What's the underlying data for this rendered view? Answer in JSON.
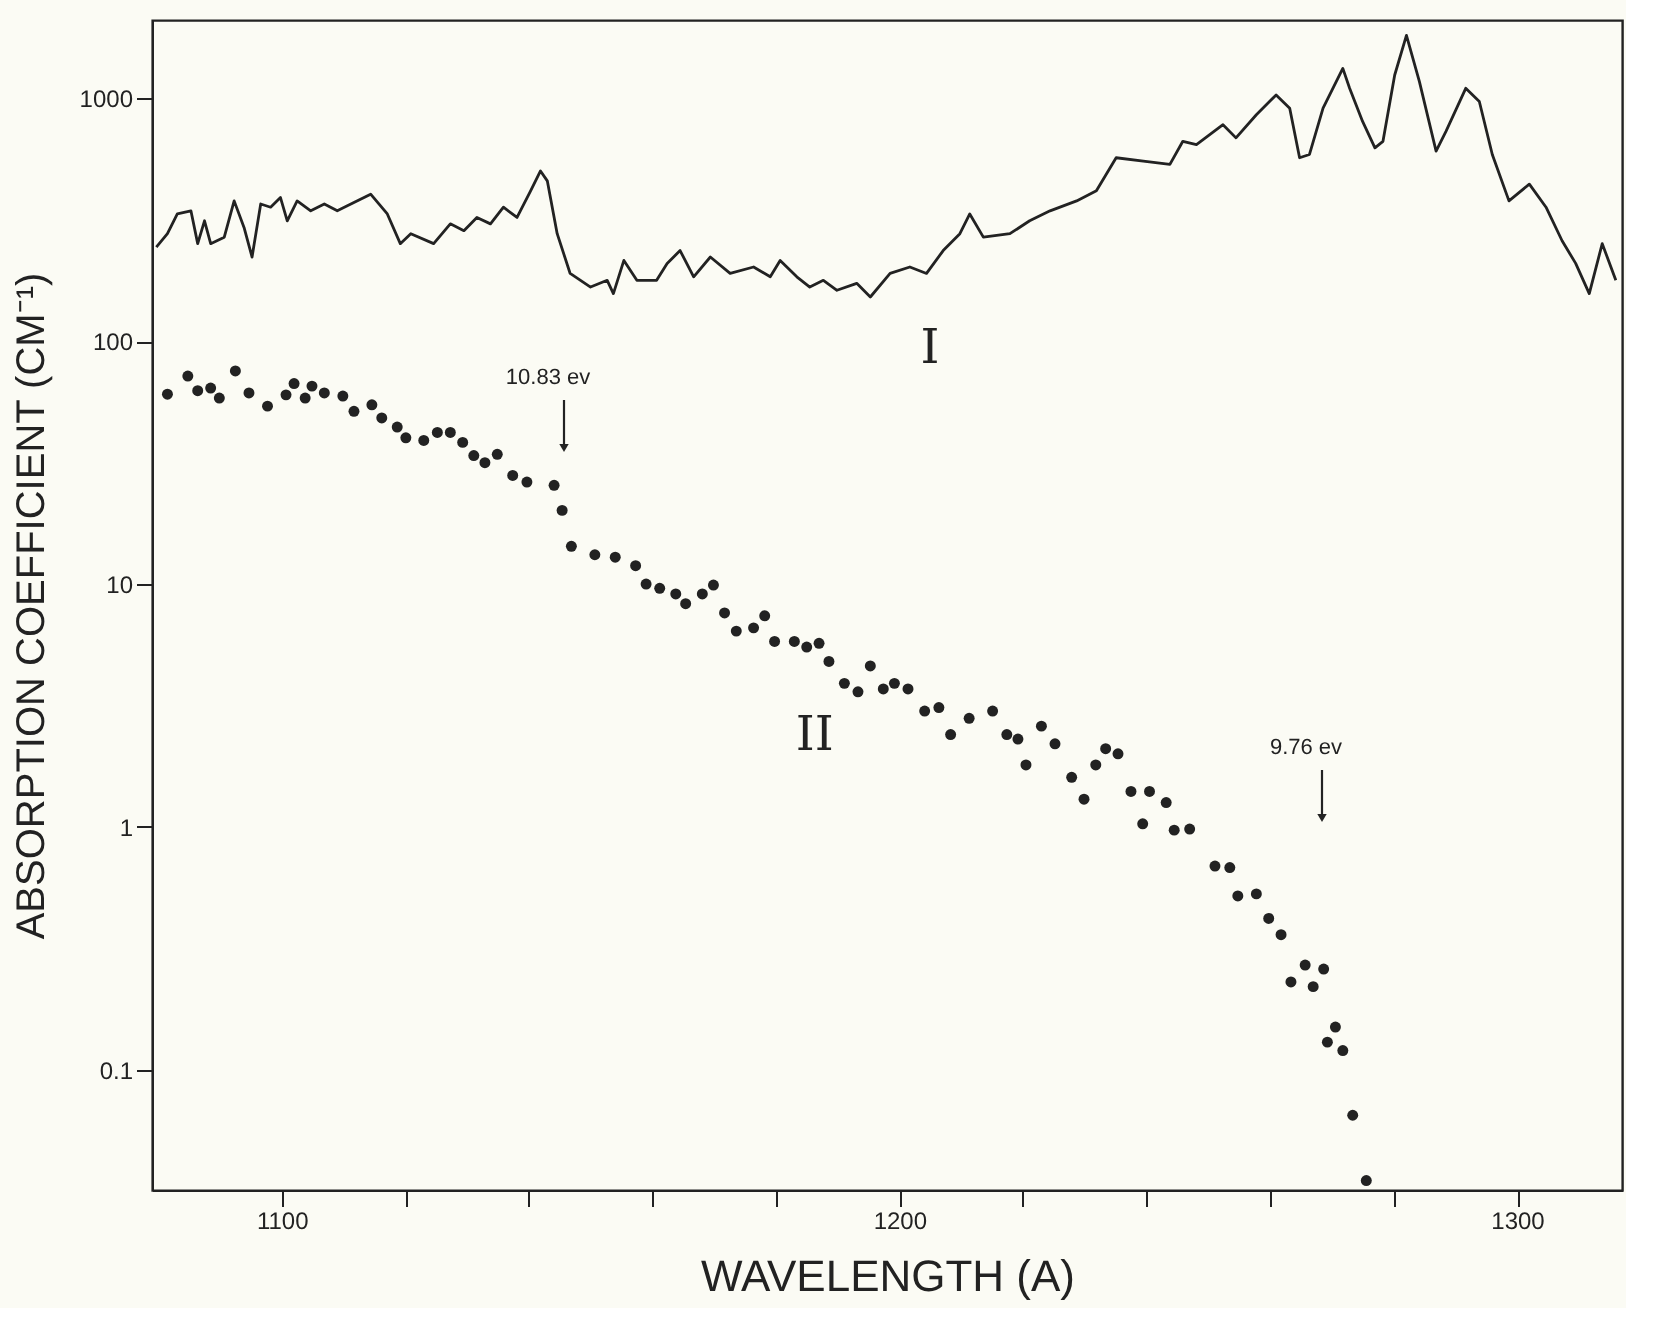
{
  "chart_data": {
    "type": "line",
    "xlabel": "WAVELENGTH (A)",
    "ylabel": "ABSORPTION COEFFICIENT (CM⁻¹)",
    "log": "y",
    "xlim": [
      1079,
      1317
    ],
    "ylim": [
      0.032,
      2100
    ],
    "xticks": [
      1100,
      {
        "value": 1120,
        "label": null
      },
      {
        "value": 1140,
        "label": null
      },
      {
        "value": 1160,
        "label": null
      },
      {
        "value": 1180,
        "label": null
      },
      1200,
      {
        "value": 1220,
        "label": null
      },
      {
        "value": 1240,
        "label": null
      },
      {
        "value": 1260,
        "label": null
      },
      {
        "value": 1280,
        "label": null
      },
      1300
    ],
    "yticks": [
      0.1,
      1,
      10,
      100,
      1000
    ],
    "grid": false,
    "legend": false,
    "series": [
      {
        "name": "I",
        "marker": "none",
        "line_style": "solid",
        "color": "#222222",
        "x": [
          1079.7,
          1081.5,
          1083.1,
          1085.3,
          1086.4,
          1087.5,
          1088.5,
          1090.7,
          1092.3,
          1093.9,
          1095.2,
          1096.6,
          1098.2,
          1099.8,
          1100.9,
          1102.5,
          1104.7,
          1106.9,
          1109.0,
          1111.2,
          1114.4,
          1117.1,
          1119.2,
          1120.9,
          1124.6,
          1127.3,
          1129.5,
          1131.6,
          1133.8,
          1135.9,
          1138.1,
          1140.3,
          1141.9,
          1143.0,
          1144.6,
          1146.7,
          1150.0,
          1152.7,
          1153.7,
          1155.4,
          1157.5,
          1160.7,
          1162.4,
          1164.5,
          1166.7,
          1169.4,
          1172.6,
          1176.4,
          1179.1,
          1180.7,
          1183.4,
          1185.5,
          1187.7,
          1189.9,
          1193.1,
          1195.3,
          1198.5,
          1201.7,
          1204.4,
          1207.1,
          1209.8,
          1211.4,
          1213.6,
          1217.9,
          1221.1,
          1224.4,
          1228.7,
          1231.9,
          1235.1,
          1239.5,
          1243.8,
          1245.9,
          1248.1,
          1252.4,
          1254.5,
          1257.8,
          1261.0,
          1263.2,
          1264.8,
          1266.4,
          1268.6,
          1271.8,
          1272.9,
          1275.0,
          1277.0,
          1278.3,
          1280.2,
          1282.1,
          1284.2,
          1286.9,
          1288.5,
          1291.7,
          1293.9,
          1296.0,
          1298.7,
          1302.0,
          1304.7,
          1307.3,
          1309.5,
          1311.7,
          1313.8,
          1316.0
        ],
        "values": [
          244,
          277,
          334,
          344,
          252,
          313,
          252,
          268,
          378,
          294,
          222,
          367,
          356,
          390,
          313,
          378,
          344,
          367,
          344,
          367,
          403,
          334,
          252,
          277,
          252,
          304,
          285,
          323,
          304,
          356,
          323,
          416,
          502,
          457,
          277,
          190,
          167,
          178,
          157,
          215,
          178,
          178,
          209,
          236,
          184,
          222,
          190,
          202,
          184,
          215,
          184,
          167,
          178,
          162,
          173,
          152,
          190,
          202,
          190,
          236,
          277,
          334,
          268,
          277,
          313,
          344,
          378,
          416,
          569,
          551,
          534,
          665,
          645,
          778,
          687,
          855,
          1032,
          910,
          569,
          587,
          910,
          1327,
          1099,
          803,
          625,
          665,
          1247,
          1816,
          1170,
          606,
          731,
          1099,
          970,
          587,
          378,
          443,
          356,
          259,
          209,
          157,
          252,
          178
        ]
      },
      {
        "name": "II",
        "type": "scatter",
        "marker": "circle",
        "color": "#222222",
        "x": [
          1081.5,
          1084.8,
          1086.4,
          1088.5,
          1089.9,
          1092.5,
          1094.7,
          1097.7,
          1100.7,
          1102.0,
          1103.8,
          1104.9,
          1106.9,
          1109.9,
          1111.7,
          1114.6,
          1116.2,
          1118.7,
          1120.1,
          1123.0,
          1125.2,
          1127.3,
          1129.3,
          1131.1,
          1132.9,
          1134.9,
          1137.4,
          1139.7,
          1144.1,
          1145.4,
          1146.9,
          1150.7,
          1154.0,
          1157.3,
          1159.0,
          1161.2,
          1163.8,
          1165.4,
          1168.1,
          1169.9,
          1171.7,
          1173.6,
          1176.4,
          1178.2,
          1179.8,
          1183.0,
          1185.0,
          1187.0,
          1188.6,
          1191.1,
          1193.3,
          1195.3,
          1197.4,
          1199.2,
          1201.4,
          1204.1,
          1206.4,
          1208.3,
          1211.3,
          1215.1,
          1217.4,
          1219.2,
          1220.5,
          1223.0,
          1225.2,
          1227.9,
          1229.9,
          1231.8,
          1233.4,
          1235.4,
          1237.5,
          1239.4,
          1240.5,
          1243.2,
          1244.5,
          1247.0,
          1251.1,
          1253.5,
          1254.8,
          1257.8,
          1259.8,
          1261.8,
          1263.4,
          1265.7,
          1267.0,
          1268.7,
          1269.3,
          1270.6,
          1271.8,
          1273.4,
          1275.6
        ],
        "values": [
          60.5,
          71.8,
          62.5,
          64.1,
          58.3,
          75.4,
          61.2,
          54.0,
          60.1,
          66.9,
          58.3,
          65.3,
          61.2,
          59.4,
          51.4,
          54.7,
          48.3,
          44.3,
          40.0,
          39.0,
          42.1,
          42.1,
          38.3,
          33.8,
          31.6,
          34.2,
          28.0,
          26.3,
          25.5,
          20.1,
          14.3,
          13.2,
          12.9,
          11.9,
          10.0,
          9.6,
          9.1,
          8.3,
          9.1,
          9.9,
          7.6,
          6.4,
          6.6,
          7.4,
          5.8,
          5.8,
          5.5,
          5.7,
          4.8,
          3.9,
          3.6,
          4.6,
          3.7,
          3.9,
          3.7,
          3.0,
          3.1,
          2.4,
          2.8,
          3.0,
          2.4,
          2.3,
          1.8,
          2.6,
          2.2,
          1.6,
          1.3,
          1.8,
          2.1,
          2.0,
          1.4,
          1.03,
          1.4,
          1.26,
          0.97,
          0.98,
          0.69,
          0.68,
          0.52,
          0.53,
          0.42,
          0.36,
          0.23,
          0.27,
          0.22,
          0.26,
          0.13,
          0.15,
          0.12,
          0.065,
          0.035
        ]
      }
    ],
    "annotations": [
      "10.83 ev",
      "9.76 ev"
    ]
  }
}
